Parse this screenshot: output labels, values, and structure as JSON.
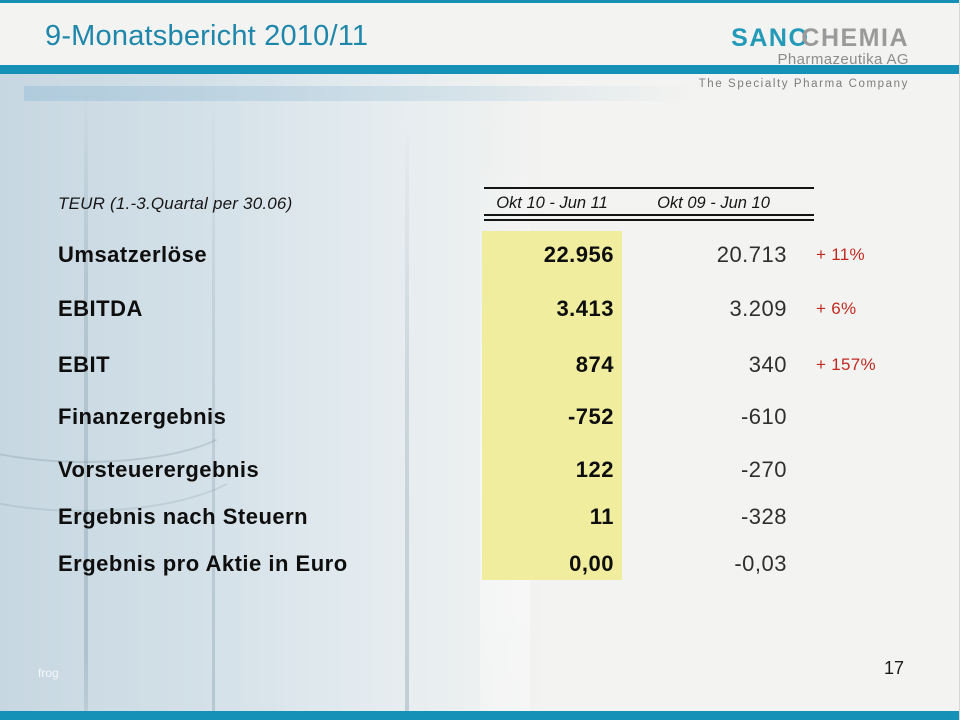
{
  "slide": {
    "title": "9-Monatsbericht 2010/11",
    "page_number": "17",
    "watermark": "frog"
  },
  "logo": {
    "part1": "SANO",
    "part2": "CHEMIA",
    "subtitle": "Pharmazeutika AG",
    "tagline": "The Specialty Pharma Company"
  },
  "colors": {
    "teal": "#1590b6",
    "title_teal": "#1e87ab",
    "highlight_yellow": "#f0ee9e",
    "delta_red": "#c22a21",
    "logo_gray": "#9a9a9a"
  },
  "table": {
    "caption": "TEUR (1.-3.Quartal per 30.06)",
    "columns": [
      "Okt 10 - Jun 11",
      "Okt 09 - Jun 10"
    ],
    "rows": [
      {
        "label": "Umsatzerlöse",
        "current": "22.956",
        "previous": "20.713",
        "delta": "+ 11%"
      },
      {
        "label": "EBITDA",
        "current": "3.413",
        "previous": "3.209",
        "delta": "+ 6%"
      },
      {
        "label": "EBIT",
        "current": "874",
        "previous": "340",
        "delta": "+ 157%"
      },
      {
        "label": "Finanzergebnis",
        "current": "-752",
        "previous": "-610",
        "delta": ""
      },
      {
        "label": "Vorsteuerergebnis",
        "current": "122",
        "previous": "-270",
        "delta": ""
      },
      {
        "label": "Ergebnis nach Steuern",
        "current": "11",
        "previous": "-328",
        "delta": ""
      },
      {
        "label": "Ergebnis pro Aktie in Euro",
        "current": "0,00",
        "previous": "-0,03",
        "delta": ""
      }
    ]
  }
}
